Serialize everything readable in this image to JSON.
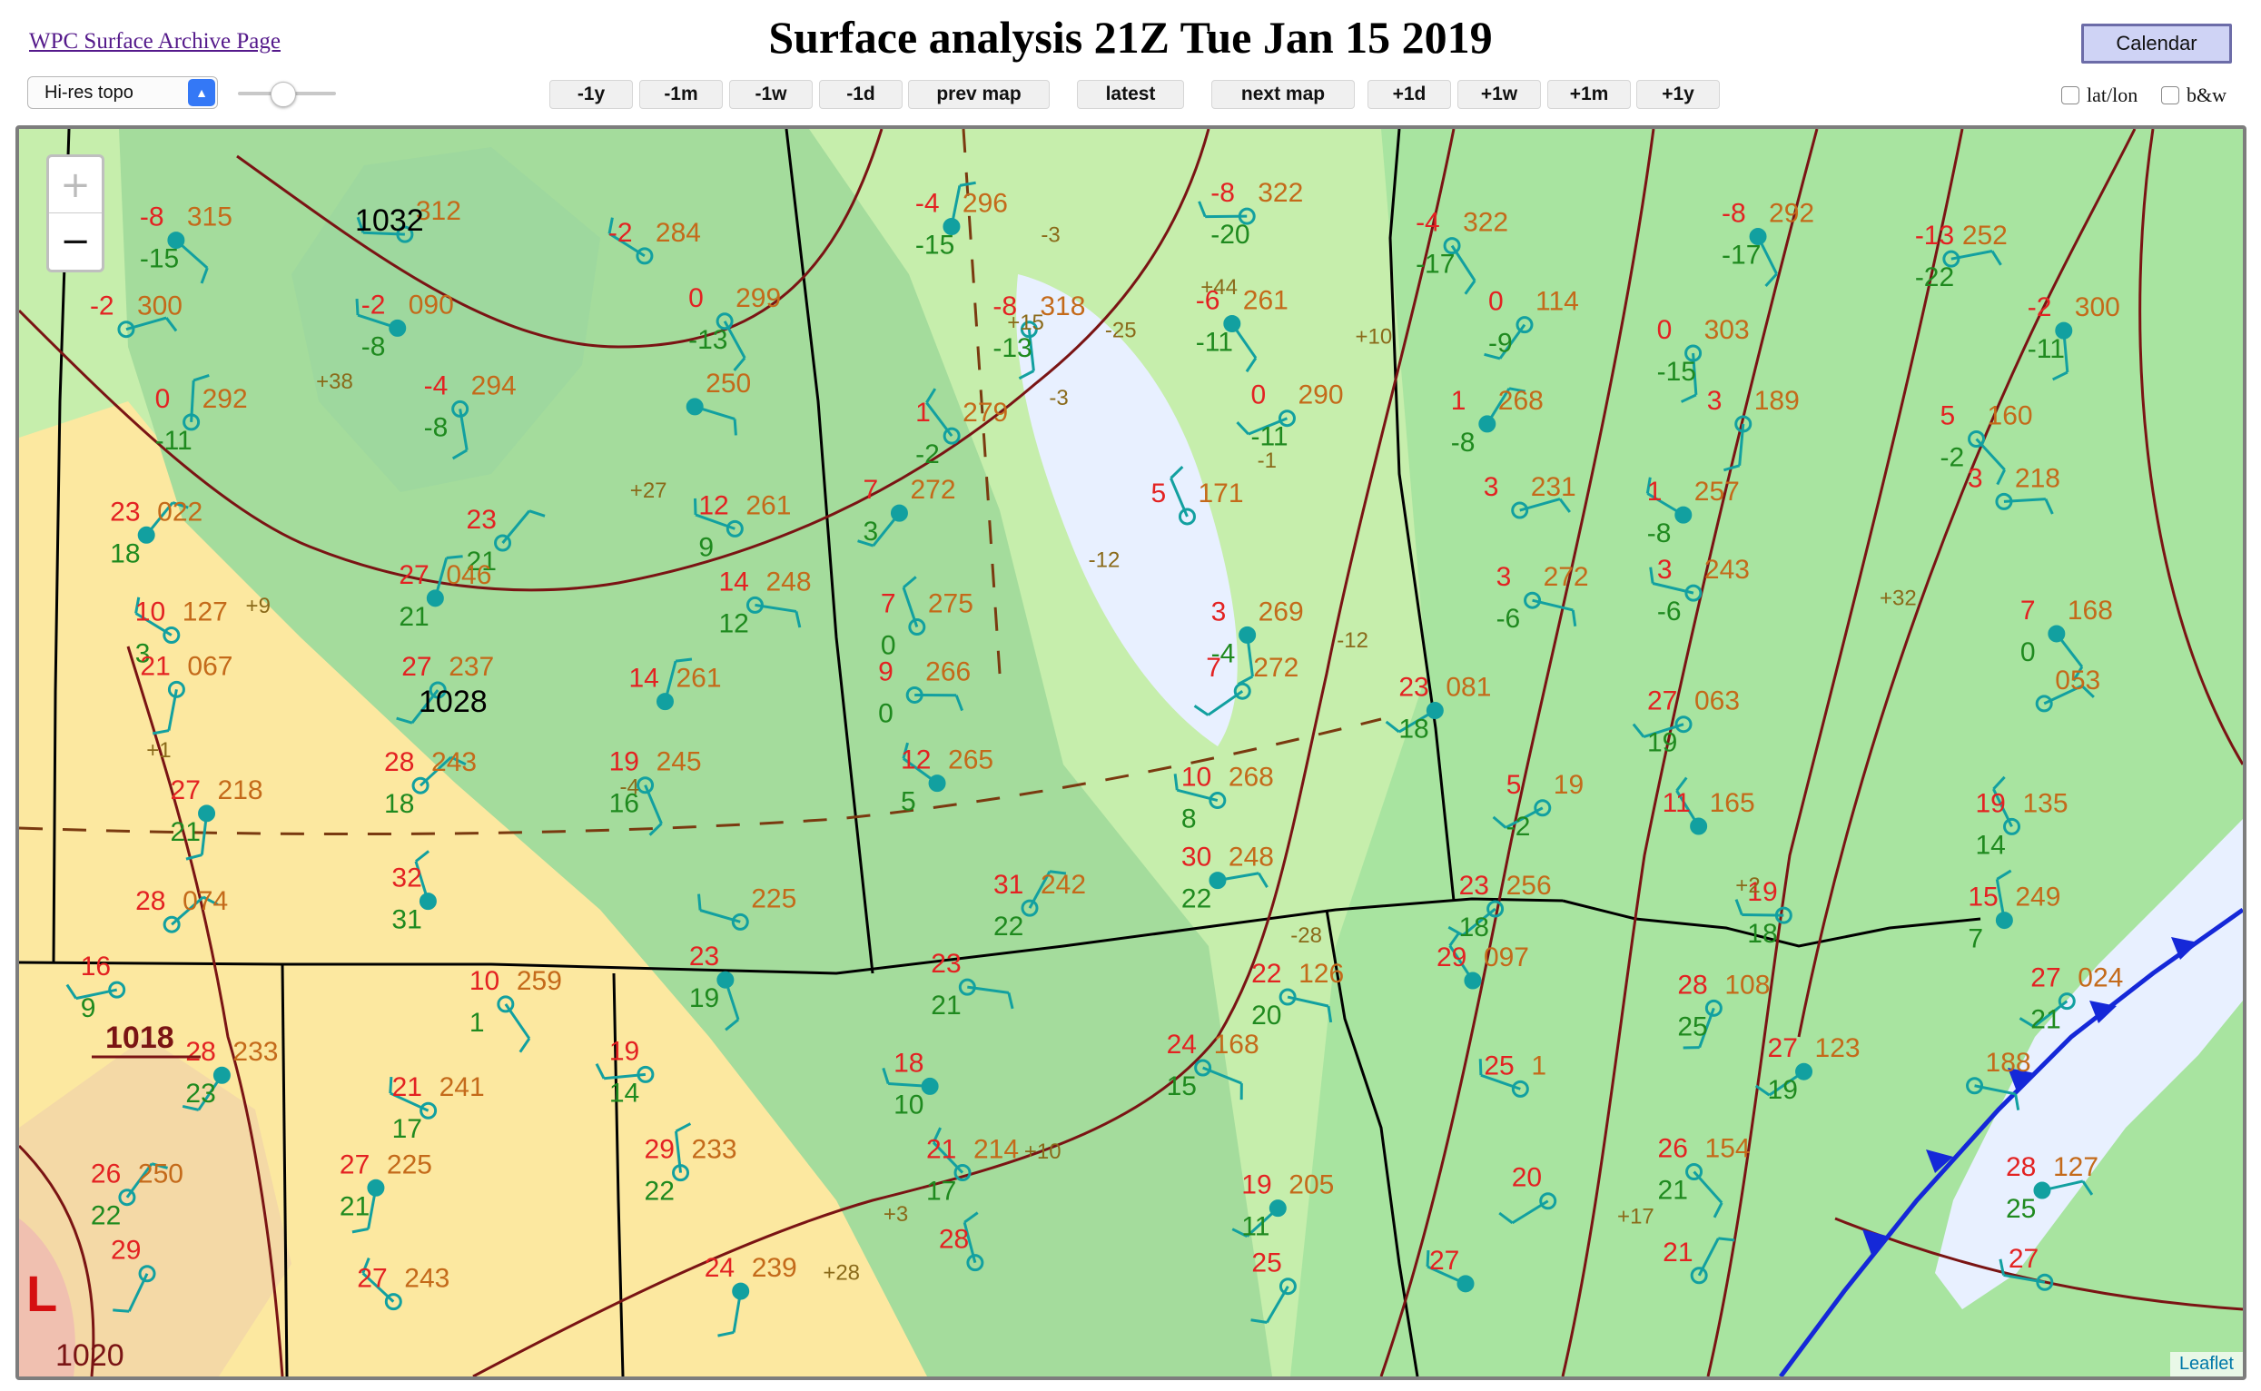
{
  "header": {
    "archive_link": "WPC Surface Archive Page",
    "title": "Surface analysis 21Z Tue Jan 15 2019",
    "calendar_label": "Calendar"
  },
  "controls": {
    "layer_select_value": "Hi-res topo",
    "nav_buttons": [
      "-1y",
      "-1m",
      "-1w",
      "-1d",
      "prev map",
      "latest",
      "next map",
      "+1d",
      "+1w",
      "+1m",
      "+1y"
    ],
    "checkboxes": [
      {
        "label": "lat/lon",
        "checked": false
      },
      {
        "label": "b&w",
        "checked": false
      }
    ]
  },
  "map": {
    "zoom_in": "+",
    "zoom_out": "−",
    "attribution": "Leaflet",
    "highs": [
      "1028"
    ],
    "pressure_labels": [
      "1032",
      "1018",
      "1020"
    ],
    "low_symbol": "L",
    "colors": {
      "isobar": "#7a1414",
      "border": "#000000",
      "temperature": "#e32222",
      "dewpoint": "#1f8a1f",
      "pressure": "#c46a1a",
      "station": "#12a0a0",
      "cold_front": "#1528d8",
      "weather": "#b020b0",
      "terrain_low": "#c6eeac",
      "terrain_high": "#fce8a0",
      "terrain_mid": "#9ed89e",
      "lake": "#e8f0ff"
    },
    "stations": [
      {
        "t": "-8",
        "p": "315",
        "d": "-15"
      },
      {
        "t": "",
        "p": "312",
        "d": ""
      },
      {
        "t": "-2",
        "p": "284",
        "d": ""
      },
      {
        "t": "-4",
        "p": "296",
        "d": "-15"
      },
      {
        "t": "-8",
        "p": "322",
        "d": "-20"
      },
      {
        "t": "-4",
        "p": "322",
        "d": "-17"
      },
      {
        "t": "-8",
        "p": "292",
        "d": "-17"
      },
      {
        "t": "-13",
        "p": "252",
        "d": "-22"
      },
      {
        "t": "-2",
        "p": "300",
        "d": ""
      },
      {
        "t": "-2",
        "p": "090",
        "d": "-8"
      },
      {
        "t": "0",
        "p": "299",
        "d": "-13"
      },
      {
        "t": "-8",
        "p": "318",
        "d": "-13"
      },
      {
        "t": "-6",
        "p": "261",
        "d": "-11"
      },
      {
        "t": "0",
        "p": "114",
        "d": "-9"
      },
      {
        "t": "0",
        "p": "303",
        "d": "-15"
      },
      {
        "t": "-2",
        "p": "300",
        "d": "-11"
      },
      {
        "t": "0",
        "p": "292",
        "d": "-11"
      },
      {
        "t": "-4",
        "p": "294",
        "d": "-8"
      },
      {
        "t": "",
        "p": "250",
        "d": ""
      },
      {
        "t": "1",
        "p": "279",
        "d": "-2"
      },
      {
        "t": "0",
        "p": "290",
        "d": "-11"
      },
      {
        "t": "1",
        "p": "268",
        "d": "-8"
      },
      {
        "t": "3",
        "p": "189",
        "d": ""
      },
      {
        "t": "5",
        "p": "160",
        "d": "-2"
      },
      {
        "t": "23",
        "p": "022",
        "d": "18"
      },
      {
        "t": "23",
        "p": "",
        "d": "21"
      },
      {
        "t": "12",
        "p": "261",
        "d": "9"
      },
      {
        "t": "7",
        "p": "272",
        "d": "3"
      },
      {
        "t": "5",
        "p": "171",
        "d": ""
      },
      {
        "t": "3",
        "p": "231",
        "d": ""
      },
      {
        "t": "1",
        "p": "257",
        "d": "-8"
      },
      {
        "t": "3",
        "p": "218",
        "d": ""
      },
      {
        "t": "10",
        "p": "127",
        "d": "3"
      },
      {
        "t": "27",
        "p": "046",
        "d": "21"
      },
      {
        "t": "14",
        "p": "248",
        "d": "12"
      },
      {
        "t": "7",
        "p": "275",
        "d": "0"
      },
      {
        "t": "3",
        "p": "269",
        "d": "-4"
      },
      {
        "t": "3",
        "p": "272",
        "d": "-6"
      },
      {
        "t": "3",
        "p": "243",
        "d": "-6"
      },
      {
        "t": "7",
        "p": "168",
        "d": "0"
      },
      {
        "t": "21",
        "p": "067",
        "d": ""
      },
      {
        "t": "27",
        "p": "237",
        "d": ""
      },
      {
        "t": "14",
        "p": "261",
        "d": ""
      },
      {
        "t": "9",
        "p": "266",
        "d": "0"
      },
      {
        "t": "7",
        "p": "272",
        "d": ""
      },
      {
        "t": "23",
        "p": "081",
        "d": "18"
      },
      {
        "t": "27",
        "p": "063",
        "d": "19"
      },
      {
        "t": "",
        "p": "053",
        "d": ""
      },
      {
        "t": "27",
        "p": "218",
        "d": "21"
      },
      {
        "t": "28",
        "p": "243",
        "d": "18"
      },
      {
        "t": "19",
        "p": "245",
        "d": "16"
      },
      {
        "t": "12",
        "p": "265",
        "d": "5"
      },
      {
        "t": "10",
        "p": "268",
        "d": "8"
      },
      {
        "t": "5",
        "p": "19",
        "d": "-2"
      },
      {
        "t": "11",
        "p": "165",
        "d": ""
      },
      {
        "t": "19",
        "p": "135",
        "d": "14"
      },
      {
        "t": "28",
        "p": "074",
        "d": ""
      },
      {
        "t": "32",
        "p": "",
        "d": "31"
      },
      {
        "t": "",
        "p": "225",
        "d": ""
      },
      {
        "t": "31",
        "p": "242",
        "d": "22"
      },
      {
        "t": "30",
        "p": "248",
        "d": "22"
      },
      {
        "t": "23",
        "p": "256",
        "d": "18"
      },
      {
        "t": "19",
        "p": "",
        "d": "18"
      },
      {
        "t": "15",
        "p": "249",
        "d": "7"
      },
      {
        "t": "16",
        "p": "",
        "d": "9"
      },
      {
        "t": "10",
        "p": "259",
        "d": "1"
      },
      {
        "t": "23",
        "p": "",
        "d": "19"
      },
      {
        "t": "23",
        "p": "",
        "d": "21"
      },
      {
        "t": "22",
        "p": "126",
        "d": "20"
      },
      {
        "t": "29",
        "p": "097",
        "d": ""
      },
      {
        "t": "28",
        "p": "108",
        "d": "25"
      },
      {
        "t": "27",
        "p": "024",
        "d": "21"
      },
      {
        "t": "28",
        "p": "233",
        "d": "23"
      },
      {
        "t": "21",
        "p": "241",
        "d": "17"
      },
      {
        "t": "19",
        "p": "",
        "d": "14"
      },
      {
        "t": "18",
        "p": "",
        "d": "10"
      },
      {
        "t": "24",
        "p": "168",
        "d": "15"
      },
      {
        "t": "25",
        "p": "1",
        "d": ""
      },
      {
        "t": "27",
        "p": "123",
        "d": "19"
      },
      {
        "t": "",
        "p": "188",
        "d": ""
      },
      {
        "t": "26",
        "p": "250",
        "d": "22"
      },
      {
        "t": "27",
        "p": "225",
        "d": "21"
      },
      {
        "t": "29",
        "p": "233",
        "d": "22"
      },
      {
        "t": "21",
        "p": "214",
        "d": "17"
      },
      {
        "t": "19",
        "p": "205",
        "d": "11"
      },
      {
        "t": "20",
        "p": "",
        "d": ""
      },
      {
        "t": "26",
        "p": "154",
        "d": "21"
      },
      {
        "t": "28",
        "p": "127",
        "d": "25"
      },
      {
        "t": "29",
        "p": "",
        "d": ""
      },
      {
        "t": "27",
        "p": "243",
        "d": ""
      },
      {
        "t": "24",
        "p": "239",
        "d": ""
      },
      {
        "t": "28",
        "p": "",
        "d": ""
      },
      {
        "t": "25",
        "p": "",
        "d": ""
      },
      {
        "t": "27",
        "p": "",
        "d": ""
      },
      {
        "t": "21",
        "p": "",
        "d": ""
      },
      {
        "t": "27",
        "p": "",
        "d": ""
      }
    ],
    "tendency_labels": [
      "-12",
      "+38",
      "+3",
      "+17",
      "+10",
      "+15",
      "+32",
      "+27",
      "+9",
      "+28",
      "+2",
      "+44",
      "-3",
      "-12",
      "-4",
      "-1",
      "-28",
      "-25",
      "+1",
      "-3",
      "+10"
    ]
  }
}
